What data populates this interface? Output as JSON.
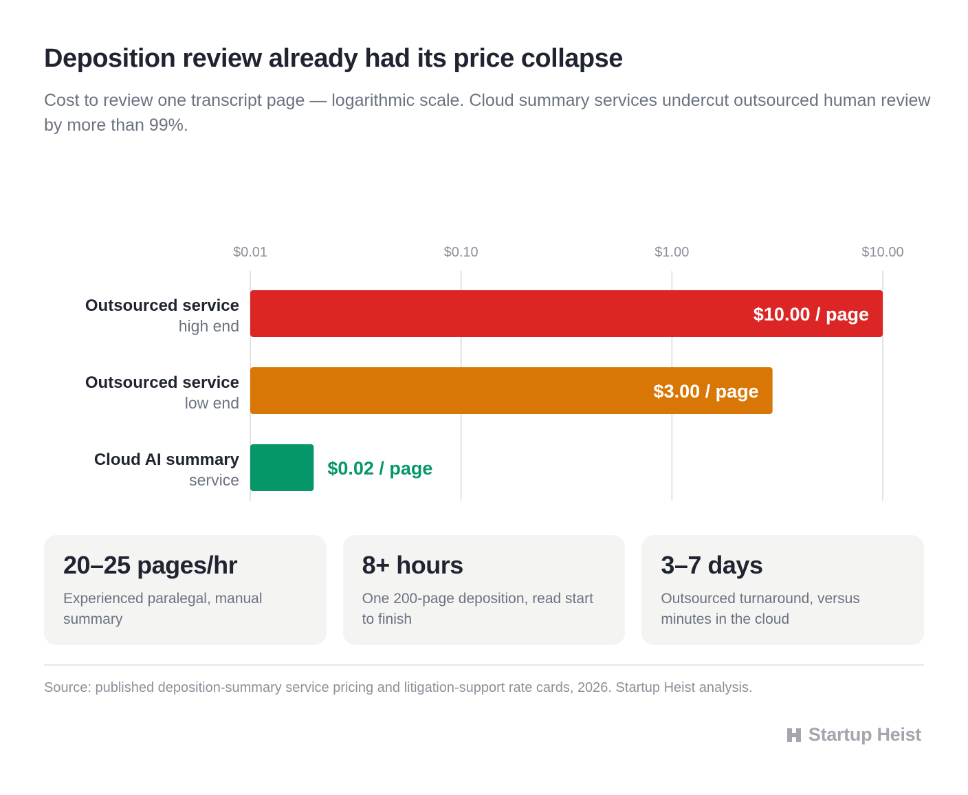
{
  "header": {
    "title": "Deposition review already had its price collapse",
    "subtitle": "Cost to review one transcript page — logarithmic scale. Cloud summary services undercut outsourced human review by more than 99%."
  },
  "chart_data": {
    "type": "bar",
    "orientation": "horizontal",
    "scale": "log",
    "xlim": [
      0.01,
      10
    ],
    "xticks": [
      {
        "value": 0.01,
        "label": "$0.01"
      },
      {
        "value": 0.1,
        "label": "$0.10"
      },
      {
        "value": 1,
        "label": "$1.00"
      },
      {
        "value": 10,
        "label": "$10.00"
      }
    ],
    "grid": true,
    "bars": [
      {
        "title": "Outsourced service",
        "subtitle": "high end",
        "value": 10,
        "label": "$10.00 / page",
        "color": "#dc2626",
        "label_position": "inside"
      },
      {
        "title": "Outsourced service",
        "subtitle": "low end",
        "value": 3,
        "label": "$3.00 / page",
        "color": "#d97706",
        "label_position": "inside"
      },
      {
        "title": "Cloud AI summary",
        "subtitle": "service",
        "value": 0.02,
        "label": "$0.02 / page",
        "color": "#059669",
        "label_position": "outside"
      }
    ]
  },
  "stats": [
    {
      "value": "20–25 pages/hr",
      "desc": "Experienced paralegal, manual summary"
    },
    {
      "value": "8+ hours",
      "desc": "One 200-page deposition, read start to finish"
    },
    {
      "value": "3–7 days",
      "desc": "Outsourced turnaround, versus minutes in the cloud"
    }
  ],
  "footer": {
    "source": "Source: published deposition-summary service pricing and litigation-support rate cards, 2026. Startup Heist analysis.",
    "brand": "Startup Heist",
    "brand_icon": "startup-heist-logo"
  }
}
